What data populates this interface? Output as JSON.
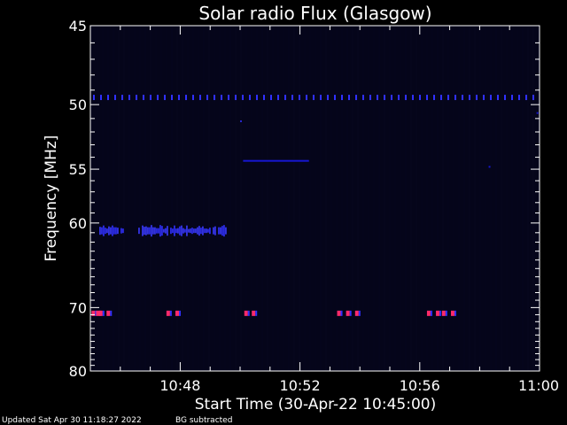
{
  "chart_data": {
    "type": "heatmap",
    "title": "Solar radio Flux (Glasgow)",
    "xlabel": "Start Time (30-Apr-22 10:45:00)",
    "ylabel": "Frequency [MHz]",
    "x_unit": "minutes after 10:45:00 UT",
    "xlim": [
      0,
      15
    ],
    "ylim": [
      45,
      80
    ],
    "y_ticks": [
      45,
      50,
      55,
      60,
      70,
      80
    ],
    "x_ticks": [
      {
        "x": 3,
        "label": "10:48"
      },
      {
        "x": 7,
        "label": "10:52"
      },
      {
        "x": 11,
        "label": "10:56"
      },
      {
        "x": 15,
        "label": "11:00"
      }
    ],
    "background_color": "#05051a",
    "colors": {
      "weak": "#1a1aff",
      "moderate": "#3030ff",
      "strong": "#ff2a6a"
    },
    "features": [
      {
        "name": "interference band",
        "freq_mhz": 49.5,
        "x_start": 0,
        "x_end": 15,
        "intensity": "moderate",
        "pattern": "dashed"
      },
      {
        "name": "emission band",
        "freq_mhz": 60.8,
        "x_start": 0.3,
        "x_end": 4.6,
        "intensity": "moderate",
        "pattern": "patchy"
      },
      {
        "name": "faint band",
        "freq_mhz": 54.3,
        "x_start": 5.1,
        "x_end": 7.3,
        "intensity": "weak",
        "pattern": "solid"
      },
      {
        "name": "isolated dot",
        "freq_mhz": 51.2,
        "x_start": 5.0,
        "x_end": 5.05,
        "intensity": "moderate",
        "pattern": "solid"
      },
      {
        "name": "dot",
        "freq_mhz": 54.8,
        "x_start": 13.3,
        "x_end": 13.35,
        "intensity": "weak",
        "pattern": "solid"
      },
      {
        "name": "dot",
        "freq_mhz": 50.6,
        "x_start": 14.9,
        "x_end": 14.95,
        "intensity": "weak",
        "pattern": "solid"
      }
    ],
    "markers_70mhz": {
      "freq_mhz": 70.8,
      "times": [
        0.1,
        0.25,
        0.35,
        0.6,
        2.6,
        2.9,
        5.2,
        5.45,
        8.3,
        8.6,
        8.9,
        11.3,
        11.6,
        11.8,
        12.1
      ]
    }
  },
  "footer": {
    "updated": "Updated Sat Apr 30 11:18:27 2022",
    "note": "BG subtracted"
  }
}
